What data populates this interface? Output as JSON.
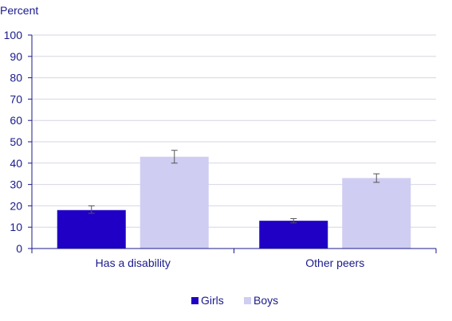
{
  "chart_data": {
    "type": "bar",
    "title": "",
    "xlabel": "",
    "ylabel": "Percent",
    "ylim": [
      0,
      100
    ],
    "yticks": [
      0,
      10,
      20,
      30,
      40,
      50,
      60,
      70,
      80,
      90,
      100
    ],
    "grid": true,
    "legend_position": "bottom",
    "categories": [
      "Has a disability",
      "Other peers"
    ],
    "series": [
      {
        "name": "Girls",
        "color": "#1f00c4",
        "values": [
          18,
          13
        ],
        "error_low": [
          16.5,
          12
        ],
        "error_high": [
          20,
          14
        ]
      },
      {
        "name": "Boys",
        "color": "#cfcdf2",
        "values": [
          43,
          33
        ],
        "error_low": [
          40,
          31
        ],
        "error_high": [
          46,
          35
        ]
      }
    ]
  }
}
